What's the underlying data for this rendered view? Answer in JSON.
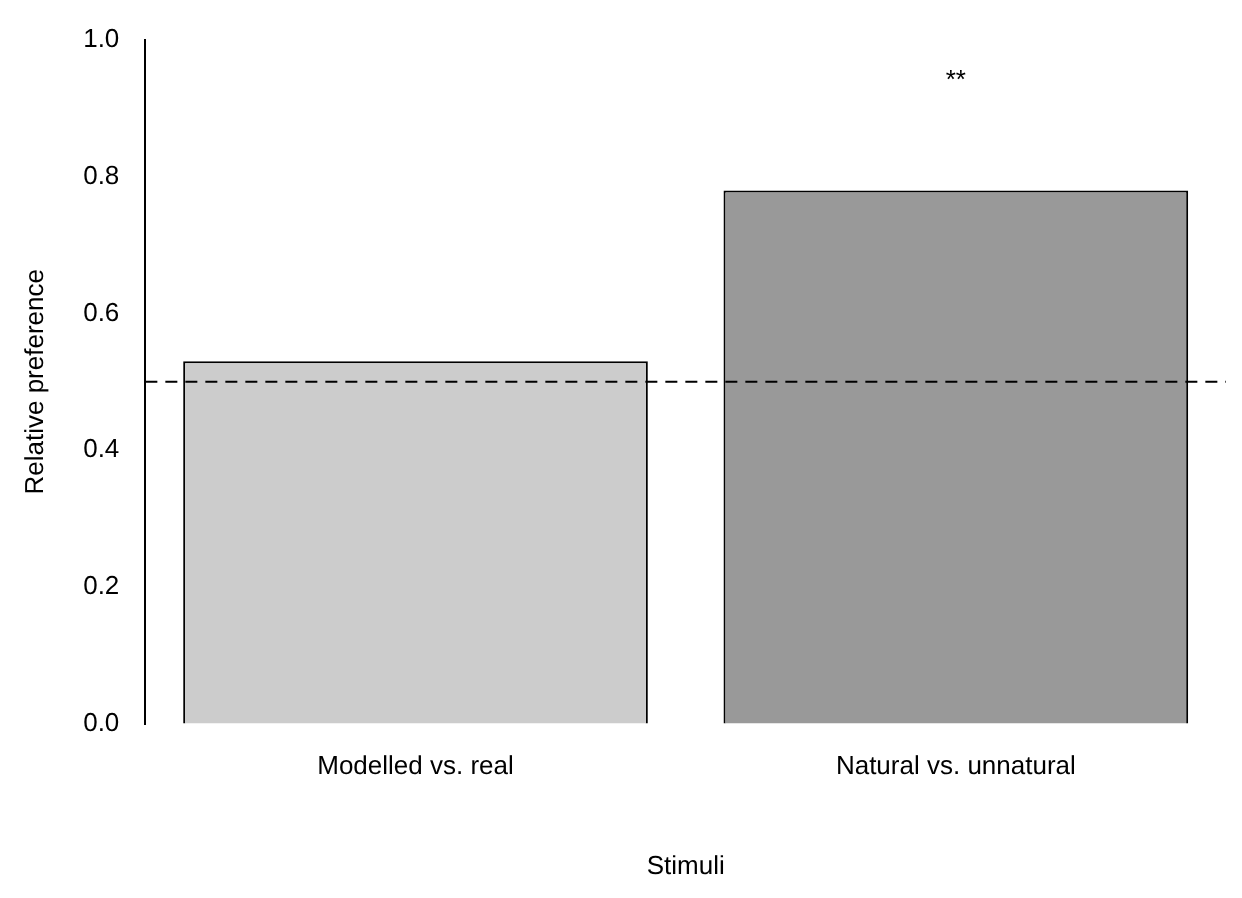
{
  "chart_data": {
    "type": "bar",
    "xlabel": "Stimuli",
    "ylabel": "Relative preference",
    "categories": [
      "Modelled vs. real",
      "Natural vs. unnatural"
    ],
    "values": [
      0.53,
      0.78
    ],
    "colors": [
      "#cccccc",
      "#999999"
    ],
    "ylim": [
      0,
      1
    ],
    "yticks": [
      {
        "value": 0,
        "label": "0.0"
      },
      {
        "value": 0.2,
        "label": "0.2"
      },
      {
        "value": 0.4,
        "label": "0.4"
      },
      {
        "value": 0.6,
        "label": "0.6"
      },
      {
        "value": 0.8,
        "label": "0.8"
      },
      {
        "value": 1,
        "label": "1.0"
      }
    ],
    "grid": false,
    "legend": false,
    "ref_lines": [
      {
        "axis": "y",
        "value": 0.5,
        "line_style": "dashed",
        "color": "#000000"
      }
    ],
    "annotations": [
      "**"
    ]
  }
}
